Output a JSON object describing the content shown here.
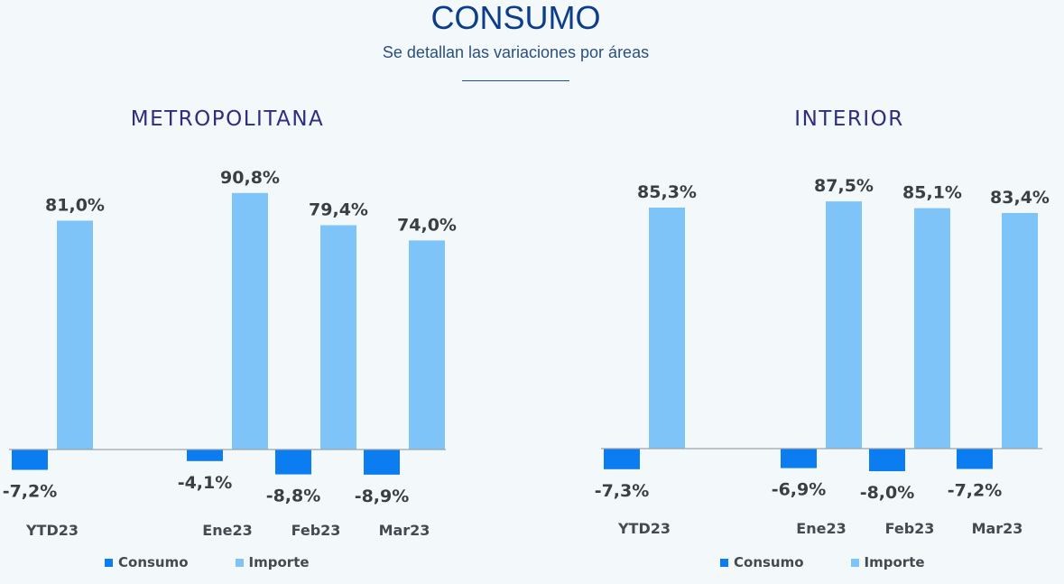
{
  "header": {
    "title": "CONSUMO",
    "subtitle": "Se detallan las variaciones por áreas"
  },
  "colors": {
    "consumo": "#0b7df0",
    "importe": "#7ec4f8"
  },
  "legend": {
    "consumo": "Consumo",
    "importe": "Importe"
  },
  "chart_data": [
    {
      "type": "bar",
      "title": "METROPOLITANA",
      "categories": [
        "YTD23",
        "Ene23",
        "Feb23",
        "Mar23"
      ],
      "series": [
        {
          "name": "Consumo",
          "values": [
            -7.2,
            -4.1,
            -8.8,
            -8.9
          ],
          "labels": [
            "-7,2%",
            "-4,1%",
            "-8,8%",
            "-8,9%"
          ]
        },
        {
          "name": "Importe",
          "values": [
            81.0,
            90.8,
            79.4,
            74.0
          ],
          "labels": [
            "81,0%",
            "90,8%",
            "79,4%",
            "74,0%"
          ]
        }
      ],
      "xlabel": "",
      "ylabel": "",
      "grid": false,
      "legend_position": "bottom-left"
    },
    {
      "type": "bar",
      "title": "INTERIOR",
      "categories": [
        "YTD23",
        "Ene23",
        "Feb23",
        "Mar23"
      ],
      "series": [
        {
          "name": "Consumo",
          "values": [
            -7.3,
            -6.9,
            -8.0,
            -7.2
          ],
          "labels": [
            "-7,3%",
            "-6,9%",
            "-8,0%",
            "-7,2%"
          ]
        },
        {
          "name": "Importe",
          "values": [
            85.3,
            87.5,
            85.1,
            83.4
          ],
          "labels": [
            "85,3%",
            "87,5%",
            "85,1%",
            "83,4%"
          ]
        }
      ],
      "xlabel": "",
      "ylabel": "",
      "grid": false,
      "legend_position": "bottom-left"
    }
  ]
}
